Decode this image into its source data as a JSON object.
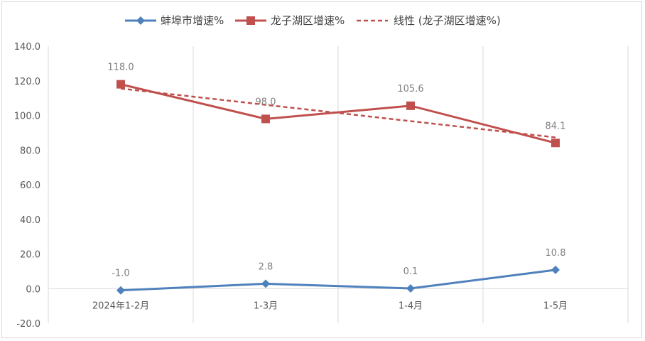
{
  "chart_data": {
    "type": "line",
    "categories": [
      "2024年1-2月",
      "1-3月",
      "1-4月",
      "1-5月"
    ],
    "series": [
      {
        "name": "蚌埠市增速%",
        "values": [
          -1.0,
          2.8,
          0.1,
          10.8
        ],
        "labels": [
          "-1.0",
          "2.8",
          "0.1",
          "10.8"
        ],
        "color": "#4f81bd",
        "marker": "diamond"
      },
      {
        "name": "龙子湖区增速%",
        "values": [
          118.0,
          98.0,
          105.6,
          84.1
        ],
        "labels": [
          "118.0",
          "98.0",
          "105.6",
          "84.1"
        ],
        "color": "#c0504d",
        "marker": "square"
      }
    ],
    "trendline": {
      "name": "线性 (龙子湖区增速%)",
      "of_series": "龙子湖区增速%",
      "style": "dashed",
      "color": "#c0504d"
    },
    "y_ticks": [
      "140.0",
      "120.0",
      "100.0",
      "80.0",
      "60.0",
      "40.0",
      "20.0",
      "0.0",
      "-20.0"
    ],
    "ylim": [
      -20,
      140
    ],
    "y_step": 20,
    "grid": "vertical",
    "legend": "top",
    "title": "",
    "xlabel": "",
    "ylabel": ""
  }
}
